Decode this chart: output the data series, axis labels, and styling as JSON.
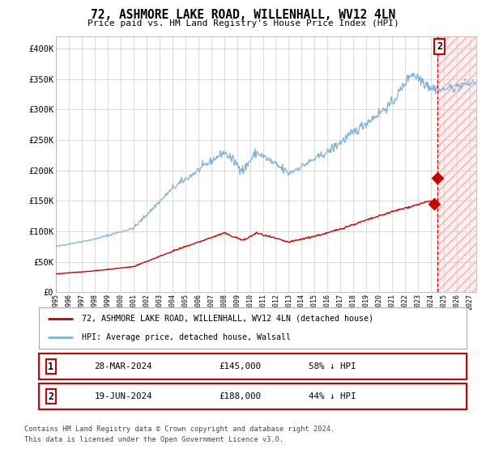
{
  "title": "72, ASHMORE LAKE ROAD, WILLENHALL, WV12 4LN",
  "subtitle": "Price paid vs. HM Land Registry's House Price Index (HPI)",
  "hpi_color": "#7fb2d9",
  "price_color": "#cc0000",
  "background_color": "#ffffff",
  "grid_color": "#cccccc",
  "ylim": [
    0,
    420000
  ],
  "yticks": [
    0,
    50000,
    100000,
    150000,
    200000,
    250000,
    300000,
    350000,
    400000
  ],
  "ytick_labels": [
    "£0",
    "£50K",
    "£100K",
    "£150K",
    "£200K",
    "£250K",
    "£300K",
    "£350K",
    "£400K"
  ],
  "sale1_year": 2024.23,
  "sale1_price": 145000,
  "sale2_year": 2024.47,
  "sale2_price": 188000,
  "legend_label_red": "72, ASHMORE LAKE ROAD, WILLENHALL, WV12 4LN (detached house)",
  "legend_label_blue": "HPI: Average price, detached house, Walsall",
  "footer1": "Contains HM Land Registry data © Crown copyright and database right 2024.",
  "footer2": "This data is licensed under the Open Government Licence v3.0.",
  "row1_label": "1",
  "row1_date": "28-MAR-2024",
  "row1_price": "£145,000",
  "row1_hpi": "58% ↓ HPI",
  "row2_label": "2",
  "row2_date": "19-JUN-2024",
  "row2_price": "£188,000",
  "row2_hpi": "44% ↓ HPI"
}
